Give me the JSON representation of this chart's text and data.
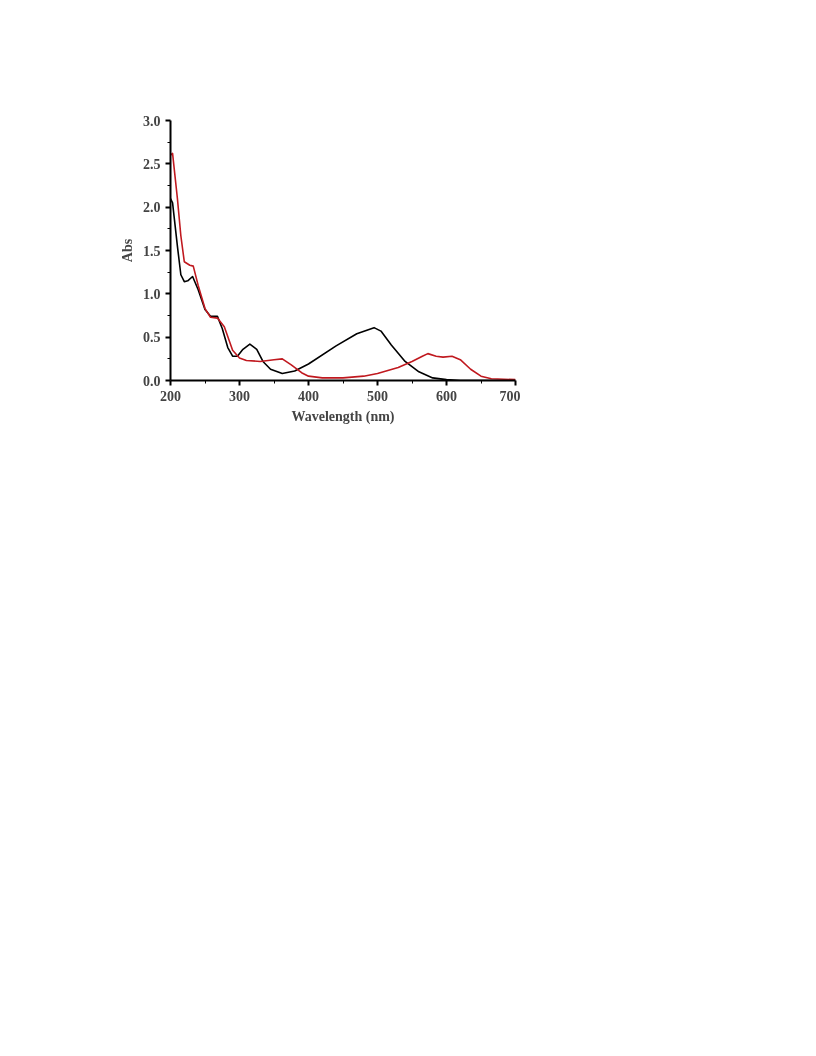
{
  "chart_data": {
    "type": "line",
    "xlabel": "Wavelength (nm)",
    "ylabel": "Abs",
    "xlim": [
      200,
      700
    ],
    "ylim": [
      0,
      3.0
    ],
    "xticks": [
      200,
      300,
      400,
      500,
      600,
      700
    ],
    "yticks": [
      {
        "value": 0,
        "label": "0.0"
      },
      {
        "value": 0.5,
        "label": "0.5"
      },
      {
        "value": 1.0,
        "label": "1.0"
      },
      {
        "value": 1.5,
        "label": "1.5"
      },
      {
        "value": 2.0,
        "label": "2.0"
      },
      {
        "value": 2.5,
        "label": "2.5"
      },
      {
        "value": 3.0,
        "label": "3.0"
      }
    ],
    "grid": false,
    "series": [
      {
        "color": "#000000",
        "x": [
          200,
          203,
          210,
          215,
          220,
          225,
          232,
          240,
          250,
          258,
          268,
          275,
          283,
          290,
          297,
          305,
          315,
          325,
          334,
          345,
          362,
          380,
          400,
          440,
          470,
          495,
          505,
          520,
          540,
          560,
          580,
          600,
          620,
          700
        ],
        "values": [
          2.1,
          2.05,
          1.55,
          1.22,
          1.14,
          1.15,
          1.2,
          1.05,
          0.82,
          0.74,
          0.74,
          0.6,
          0.38,
          0.28,
          0.28,
          0.36,
          0.42,
          0.36,
          0.22,
          0.13,
          0.08,
          0.11,
          0.19,
          0.4,
          0.54,
          0.61,
          0.57,
          0.41,
          0.22,
          0.1,
          0.03,
          0.01,
          0.0,
          0.0
        ]
      },
      {
        "color": "#c0191f",
        "x": [
          200,
          203,
          210,
          215,
          220,
          228,
          233,
          240,
          250,
          258,
          268,
          278,
          290,
          300,
          310,
          330,
          350,
          362,
          375,
          390,
          400,
          420,
          450,
          480,
          500,
          530,
          550,
          565,
          573,
          585,
          595,
          608,
          620,
          635,
          650,
          665,
          700
        ],
        "values": [
          2.6,
          2.62,
          2.1,
          1.67,
          1.37,
          1.33,
          1.32,
          1.1,
          0.83,
          0.73,
          0.72,
          0.62,
          0.35,
          0.26,
          0.23,
          0.22,
          0.24,
          0.25,
          0.18,
          0.09,
          0.05,
          0.03,
          0.03,
          0.05,
          0.08,
          0.15,
          0.22,
          0.28,
          0.31,
          0.28,
          0.27,
          0.28,
          0.24,
          0.13,
          0.05,
          0.02,
          0.01
        ]
      }
    ]
  }
}
